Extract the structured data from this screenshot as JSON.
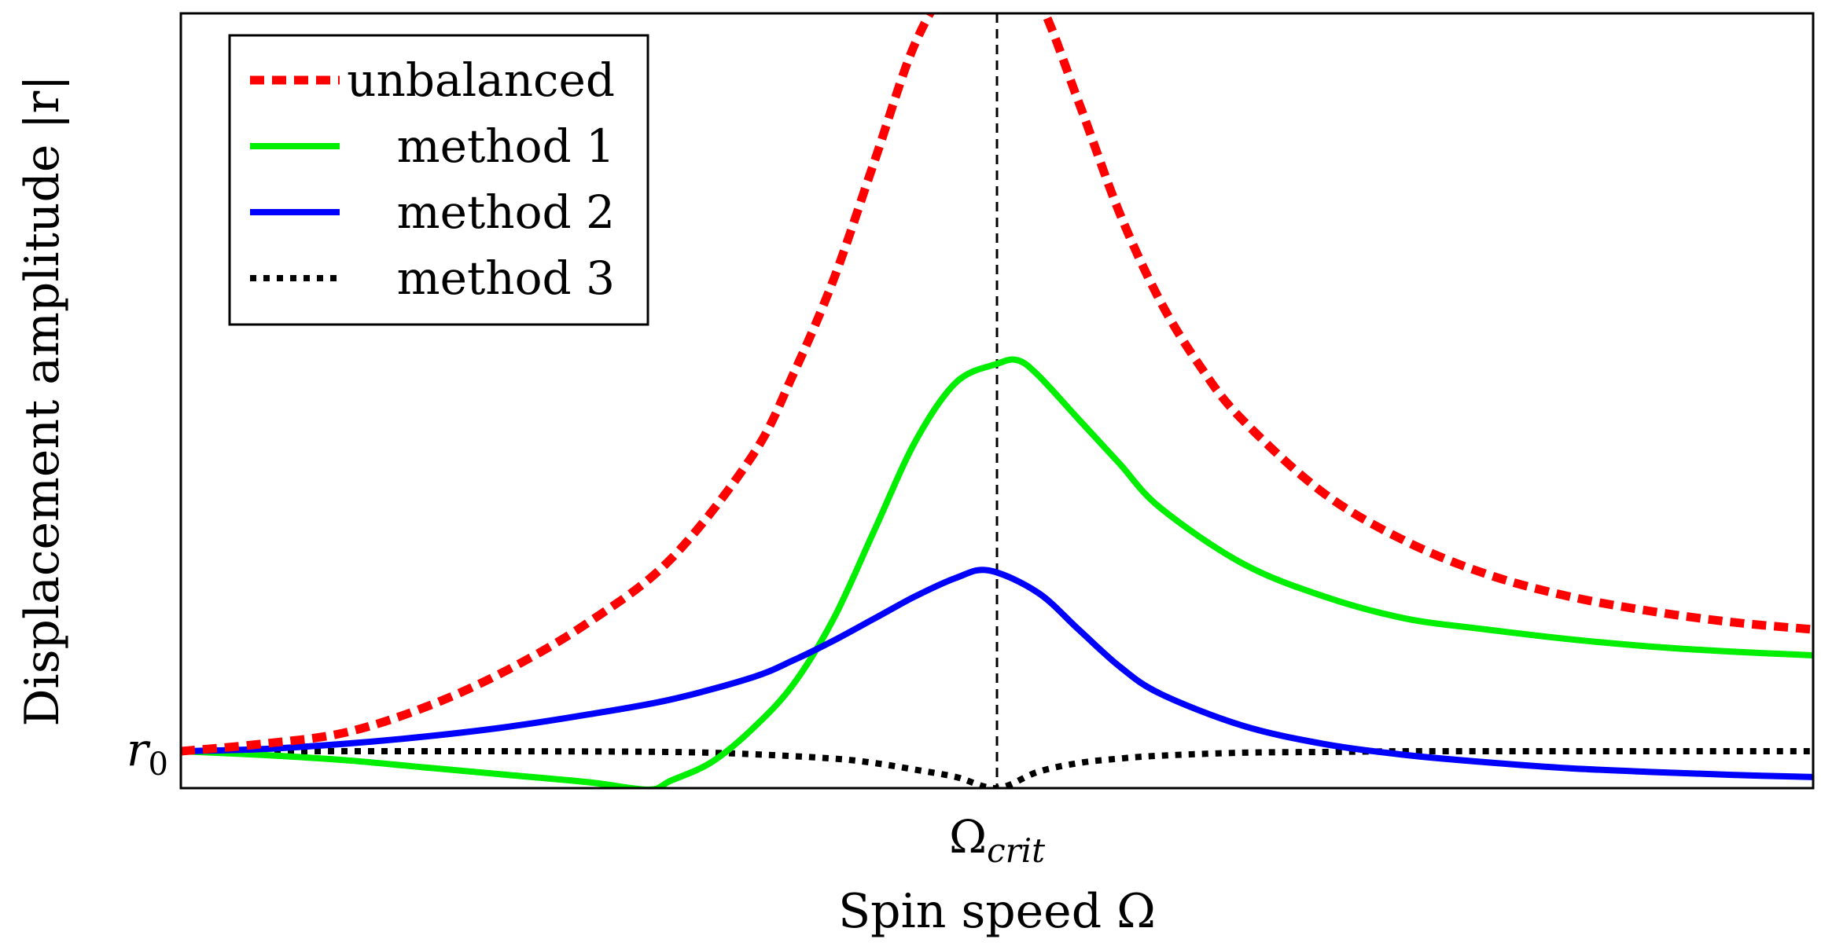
{
  "chart_data": {
    "type": "line",
    "title": "",
    "xlabel": "Spin speed Ω",
    "ylabel": "Displacement amplitude |r|",
    "x_ticks": [
      {
        "x": 1.0,
        "base": "Ω",
        "sub": "crit"
      }
    ],
    "y_ticks": [
      {
        "y": 1.0,
        "base": "r",
        "sub": "0"
      }
    ],
    "xlim": [
      0.0,
      2.0
    ],
    "ylim": [
      0.95,
      2.0
    ],
    "grid": false,
    "legend_position": "top-left",
    "reference_lines": [
      {
        "orientation": "vertical",
        "x": 1.0,
        "style": "dashed",
        "color": "#000000"
      }
    ],
    "series": [
      {
        "name": "unbalanced",
        "color": "#ff0000",
        "style": "dashed",
        "x": [
          0,
          0.1,
          0.2,
          0.3,
          0.4,
          0.5,
          0.6,
          0.7,
          0.75,
          0.8,
          0.85,
          0.9,
          0.95,
          1.0,
          1.05,
          1.1,
          1.15,
          1.2,
          1.25,
          1.3,
          1.4,
          1.5,
          1.6,
          1.7,
          1.8,
          1.9,
          2.0
        ],
        "y": [
          1.0,
          1.01,
          1.025,
          1.06,
          1.11,
          1.175,
          1.26,
          1.4,
          1.51,
          1.64,
          1.8,
          1.96,
          2.05,
          2.075,
          2.02,
          1.88,
          1.73,
          1.61,
          1.52,
          1.45,
          1.35,
          1.285,
          1.24,
          1.21,
          1.19,
          1.175,
          1.165
        ]
      },
      {
        "name": "method 1",
        "color": "#00ee00",
        "style": "solid",
        "x": [
          0,
          0.1,
          0.2,
          0.3,
          0.4,
          0.5,
          0.573,
          0.6,
          0.65,
          0.7,
          0.75,
          0.8,
          0.85,
          0.9,
          0.95,
          1.0,
          1.025,
          1.05,
          1.1,
          1.15,
          1.2,
          1.3,
          1.4,
          1.5,
          1.6,
          1.7,
          1.8,
          1.9,
          2.0
        ],
        "y": [
          1.0,
          0.995,
          0.988,
          0.978,
          0.968,
          0.958,
          0.948,
          0.96,
          0.985,
          1.03,
          1.09,
          1.18,
          1.3,
          1.42,
          1.5,
          1.525,
          1.53,
          1.51,
          1.45,
          1.39,
          1.33,
          1.255,
          1.21,
          1.18,
          1.165,
          1.152,
          1.142,
          1.135,
          1.13
        ]
      },
      {
        "name": "method 2",
        "color": "#0000ff",
        "style": "solid",
        "x": [
          0,
          0.1,
          0.2,
          0.3,
          0.4,
          0.5,
          0.6,
          0.7,
          0.75,
          0.8,
          0.85,
          0.9,
          0.95,
          0.99,
          1.05,
          1.1,
          1.15,
          1.2,
          1.3,
          1.4,
          1.5,
          1.6,
          1.7,
          1.8,
          1.9,
          2.0
        ],
        "y": [
          1.0,
          1.003,
          1.01,
          1.02,
          1.033,
          1.05,
          1.07,
          1.1,
          1.123,
          1.15,
          1.18,
          1.21,
          1.235,
          1.245,
          1.215,
          1.165,
          1.115,
          1.078,
          1.035,
          1.01,
          0.995,
          0.985,
          0.977,
          0.972,
          0.968,
          0.965
        ]
      },
      {
        "name": "method 3",
        "color": "#000000",
        "style": "dotted",
        "x": [
          0,
          0.2,
          0.4,
          0.6,
          0.7,
          0.8,
          0.85,
          0.9,
          0.95,
          1.0,
          1.05,
          1.1,
          1.15,
          1.2,
          1.3,
          1.4,
          1.5,
          1.6,
          1.8,
          2.0
        ],
        "y": [
          1.0,
          1.0,
          1.0,
          0.999,
          0.996,
          0.99,
          0.984,
          0.975,
          0.965,
          0.95,
          0.972,
          0.984,
          0.99,
          0.994,
          0.998,
          0.999,
          1.0,
          1.0,
          1.0,
          1.0
        ]
      }
    ]
  }
}
